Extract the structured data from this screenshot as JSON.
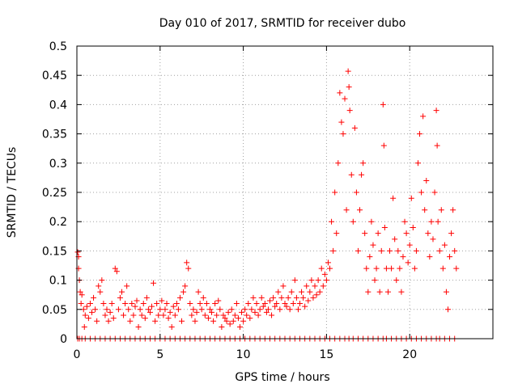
{
  "chart_data": {
    "type": "scatter",
    "title": "Day 010 of 2017, SRMTID for receiver dubo",
    "xlabel": "GPS time / hours",
    "ylabel": "SRMTID / TECUs",
    "xlim": [
      0,
      25
    ],
    "ylim": [
      0,
      0.5
    ],
    "x_ticks": [
      0,
      5,
      10,
      15,
      20
    ],
    "x_tick_labels": [
      "0",
      "5",
      "10",
      "15",
      "20"
    ],
    "y_ticks": [
      0,
      0.05,
      0.1,
      0.15,
      0.2,
      0.25,
      0.3,
      0.35,
      0.4,
      0.45,
      0.5
    ],
    "y_tick_labels": [
      "0",
      "0.05",
      "0.1",
      "0.15",
      "0.2",
      "0.25",
      "0.3",
      "0.35",
      "0.4",
      "0.45",
      "0.5"
    ],
    "grid": true,
    "marker": "+",
    "series": [
      {
        "name": "SRMTID",
        "color": "#ff0000",
        "points": [
          [
            0.05,
            0.148
          ],
          [
            0.1,
            0.14
          ],
          [
            0.1,
            0.12
          ],
          [
            0.15,
            0.1
          ],
          [
            0.2,
            0.08
          ],
          [
            0.25,
            0.06
          ],
          [
            0.3,
            0.075
          ],
          [
            0.4,
            0.05
          ],
          [
            0.45,
            0.02
          ],
          [
            0.5,
            0.04
          ],
          [
            0.6,
            0.055
          ],
          [
            0.7,
            0.035
          ],
          [
            0.8,
            0.06
          ],
          [
            0.9,
            0.045
          ],
          [
            1.0,
            0.07
          ],
          [
            1.1,
            0.05
          ],
          [
            1.2,
            0.03
          ],
          [
            1.3,
            0.09
          ],
          [
            1.4,
            0.08
          ],
          [
            1.5,
            0.1
          ],
          [
            1.6,
            0.06
          ],
          [
            1.7,
            0.04
          ],
          [
            1.8,
            0.05
          ],
          [
            1.9,
            0.03
          ],
          [
            2.0,
            0.045
          ],
          [
            2.1,
            0.06
          ],
          [
            2.2,
            0.035
          ],
          [
            2.3,
            0.12
          ],
          [
            2.4,
            0.115
          ],
          [
            2.5,
            0.05
          ],
          [
            2.6,
            0.07
          ],
          [
            2.7,
            0.08
          ],
          [
            2.8,
            0.04
          ],
          [
            2.9,
            0.06
          ],
          [
            3.0,
            0.09
          ],
          [
            3.1,
            0.05
          ],
          [
            3.2,
            0.03
          ],
          [
            3.3,
            0.06
          ],
          [
            3.4,
            0.04
          ],
          [
            3.5,
            0.055
          ],
          [
            3.6,
            0.065
          ],
          [
            3.7,
            0.02
          ],
          [
            3.8,
            0.05
          ],
          [
            3.9,
            0.04
          ],
          [
            4.0,
            0.06
          ],
          [
            4.1,
            0.035
          ],
          [
            4.2,
            0.07
          ],
          [
            4.3,
            0.05
          ],
          [
            4.4,
            0.045
          ],
          [
            4.5,
            0.055
          ],
          [
            4.6,
            0.095
          ],
          [
            4.7,
            0.03
          ],
          [
            4.8,
            0.06
          ],
          [
            4.9,
            0.04
          ],
          [
            5.0,
            0.05
          ],
          [
            5.1,
            0.065
          ],
          [
            5.2,
            0.04
          ],
          [
            5.3,
            0.05
          ],
          [
            5.4,
            0.06
          ],
          [
            5.5,
            0.035
          ],
          [
            5.6,
            0.045
          ],
          [
            5.7,
            0.02
          ],
          [
            5.8,
            0.055
          ],
          [
            5.9,
            0.04
          ],
          [
            6.0,
            0.06
          ],
          [
            6.1,
            0.05
          ],
          [
            6.2,
            0.07
          ],
          [
            6.3,
            0.03
          ],
          [
            6.4,
            0.08
          ],
          [
            6.5,
            0.09
          ],
          [
            6.6,
            0.13
          ],
          [
            6.7,
            0.12
          ],
          [
            6.8,
            0.06
          ],
          [
            6.9,
            0.04
          ],
          [
            7.0,
            0.05
          ],
          [
            7.1,
            0.03
          ],
          [
            7.2,
            0.045
          ],
          [
            7.3,
            0.08
          ],
          [
            7.4,
            0.06
          ],
          [
            7.5,
            0.05
          ],
          [
            7.6,
            0.07
          ],
          [
            7.7,
            0.04
          ],
          [
            7.8,
            0.06
          ],
          [
            7.9,
            0.035
          ],
          [
            8.0,
            0.05
          ],
          [
            8.1,
            0.045
          ],
          [
            8.2,
            0.03
          ],
          [
            8.3,
            0.06
          ],
          [
            8.4,
            0.04
          ],
          [
            8.5,
            0.065
          ],
          [
            8.6,
            0.05
          ],
          [
            8.7,
            0.02
          ],
          [
            8.8,
            0.04
          ],
          [
            8.9,
            0.035
          ],
          [
            9.0,
            0.03
          ],
          [
            9.1,
            0.045
          ],
          [
            9.2,
            0.025
          ],
          [
            9.3,
            0.05
          ],
          [
            9.4,
            0.03
          ],
          [
            9.5,
            0.04
          ],
          [
            9.6,
            0.06
          ],
          [
            9.7,
            0.035
          ],
          [
            9.8,
            0.02
          ],
          [
            9.9,
            0.045
          ],
          [
            10.0,
            0.03
          ],
          [
            10.1,
            0.05
          ],
          [
            10.2,
            0.04
          ],
          [
            10.3,
            0.06
          ],
          [
            10.4,
            0.035
          ],
          [
            10.5,
            0.05
          ],
          [
            10.6,
            0.07
          ],
          [
            10.7,
            0.045
          ],
          [
            10.8,
            0.06
          ],
          [
            10.9,
            0.04
          ],
          [
            11.0,
            0.05
          ],
          [
            11.1,
            0.07
          ],
          [
            11.2,
            0.055
          ],
          [
            11.3,
            0.06
          ],
          [
            11.4,
            0.045
          ],
          [
            11.5,
            0.05
          ],
          [
            11.6,
            0.065
          ],
          [
            11.7,
            0.04
          ],
          [
            11.8,
            0.07
          ],
          [
            11.9,
            0.055
          ],
          [
            12.0,
            0.06
          ],
          [
            12.1,
            0.08
          ],
          [
            12.2,
            0.05
          ],
          [
            12.3,
            0.07
          ],
          [
            12.4,
            0.09
          ],
          [
            12.5,
            0.06
          ],
          [
            12.6,
            0.055
          ],
          [
            12.7,
            0.07
          ],
          [
            12.8,
            0.05
          ],
          [
            12.9,
            0.08
          ],
          [
            13.0,
            0.06
          ],
          [
            13.1,
            0.1
          ],
          [
            13.2,
            0.07
          ],
          [
            13.3,
            0.05
          ],
          [
            13.4,
            0.06
          ],
          [
            13.5,
            0.08
          ],
          [
            13.6,
            0.07
          ],
          [
            13.7,
            0.055
          ],
          [
            13.8,
            0.09
          ],
          [
            13.9,
            0.065
          ],
          [
            14.0,
            0.08
          ],
          [
            14.1,
            0.1
          ],
          [
            14.2,
            0.07
          ],
          [
            14.3,
            0.09
          ],
          [
            14.4,
            0.075
          ],
          [
            14.5,
            0.1
          ],
          [
            14.6,
            0.08
          ],
          [
            14.7,
            0.12
          ],
          [
            14.8,
            0.09
          ],
          [
            14.9,
            0.11
          ],
          [
            15.0,
            0.1
          ],
          [
            15.1,
            0.13
          ],
          [
            15.2,
            0.12
          ],
          [
            15.3,
            0.2
          ],
          [
            15.4,
            0.15
          ],
          [
            15.5,
            0.25
          ],
          [
            15.6,
            0.18
          ],
          [
            15.7,
            0.3
          ],
          [
            15.8,
            0.42
          ],
          [
            15.9,
            0.37
          ],
          [
            16.0,
            0.35
          ],
          [
            16.1,
            0.41
          ],
          [
            16.2,
            0.22
          ],
          [
            16.3,
            0.457
          ],
          [
            16.35,
            0.43
          ],
          [
            16.4,
            0.39
          ],
          [
            16.5,
            0.28
          ],
          [
            16.6,
            0.2
          ],
          [
            16.7,
            0.36
          ],
          [
            16.8,
            0.25
          ],
          [
            16.9,
            0.15
          ],
          [
            17.0,
            0.22
          ],
          [
            17.1,
            0.28
          ],
          [
            17.2,
            0.3
          ],
          [
            17.3,
            0.18
          ],
          [
            17.4,
            0.12
          ],
          [
            17.5,
            0.08
          ],
          [
            17.6,
            0.14
          ],
          [
            17.7,
            0.2
          ],
          [
            17.8,
            0.16
          ],
          [
            17.9,
            0.1
          ],
          [
            18.0,
            0.12
          ],
          [
            18.1,
            0.18
          ],
          [
            18.2,
            0.08
          ],
          [
            18.3,
            0.15
          ],
          [
            18.4,
            0.4
          ],
          [
            18.45,
            0.33
          ],
          [
            18.5,
            0.19
          ],
          [
            18.6,
            0.12
          ],
          [
            18.7,
            0.08
          ],
          [
            18.8,
            0.15
          ],
          [
            18.9,
            0.12
          ],
          [
            19.0,
            0.24
          ],
          [
            19.1,
            0.17
          ],
          [
            19.2,
            0.1
          ],
          [
            19.3,
            0.15
          ],
          [
            19.4,
            0.12
          ],
          [
            19.5,
            0.08
          ],
          [
            19.6,
            0.14
          ],
          [
            19.7,
            0.2
          ],
          [
            19.8,
            0.18
          ],
          [
            19.9,
            0.13
          ],
          [
            20.0,
            0.16
          ],
          [
            20.1,
            0.24
          ],
          [
            20.2,
            0.19
          ],
          [
            20.3,
            0.12
          ],
          [
            20.4,
            0.15
          ],
          [
            20.5,
            0.3
          ],
          [
            20.6,
            0.35
          ],
          [
            20.7,
            0.25
          ],
          [
            20.8,
            0.38
          ],
          [
            20.9,
            0.22
          ],
          [
            21.0,
            0.27
          ],
          [
            21.1,
            0.18
          ],
          [
            21.2,
            0.14
          ],
          [
            21.3,
            0.2
          ],
          [
            21.4,
            0.17
          ],
          [
            21.5,
            0.25
          ],
          [
            21.6,
            0.39
          ],
          [
            21.65,
            0.33
          ],
          [
            21.7,
            0.2
          ],
          [
            21.8,
            0.15
          ],
          [
            21.9,
            0.22
          ],
          [
            22.0,
            0.12
          ],
          [
            22.1,
            0.16
          ],
          [
            22.2,
            0.08
          ],
          [
            22.3,
            0.05
          ],
          [
            22.4,
            0.14
          ],
          [
            22.5,
            0.18
          ],
          [
            22.6,
            0.22
          ],
          [
            22.7,
            0.15
          ],
          [
            22.8,
            0.12
          ]
        ]
      }
    ]
  }
}
